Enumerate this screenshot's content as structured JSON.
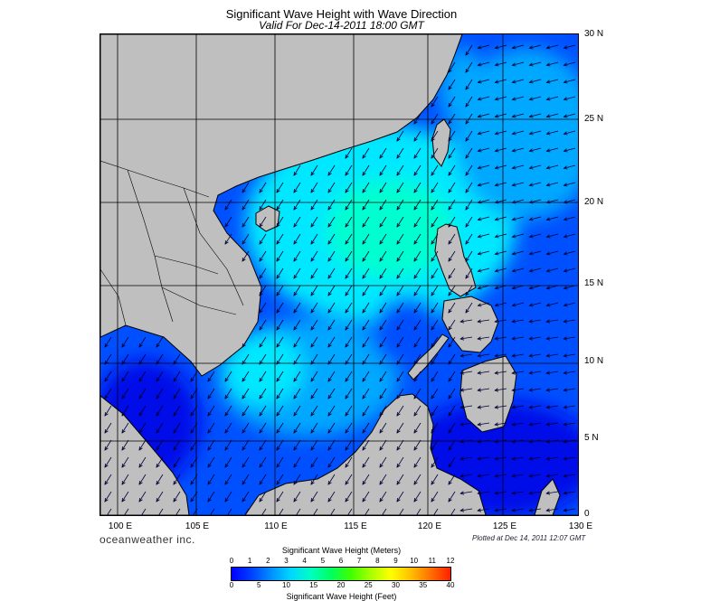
{
  "title": "Significant Wave Height with Wave Direction",
  "subtitle": "Valid For Dec-14-2011 18:00 GMT",
  "latitude_labels": [
    "30 N",
    "25 N",
    "20 N",
    "15 N",
    "10 N",
    "5 N",
    "0"
  ],
  "longitude_labels": [
    "100 E",
    "105 E",
    "110 E",
    "115 E",
    "120 E",
    "125 E",
    "130 E"
  ],
  "branding": "oceanweather inc.",
  "plotted_at": "Plotted at Dec 14, 2011 12:07 GMT",
  "colorbar": {
    "meters_title": "Significant Wave Height (Meters)",
    "feet_title": "Significant Wave Height (Feet)",
    "meters_ticks": [
      "0",
      "1",
      "2",
      "3",
      "4",
      "5",
      "6",
      "7",
      "8",
      "9",
      "10",
      "11",
      "12"
    ],
    "feet_ticks": [
      "0",
      "5",
      "10",
      "15",
      "20",
      "25",
      "30",
      "35",
      "40"
    ],
    "gradient_colors": [
      "#0000ff",
      "#0040ff",
      "#0090ff",
      "#00d8ff",
      "#00ffc0",
      "#00ff60",
      "#40ff00",
      "#a8ff00",
      "#ffff00",
      "#ffc000",
      "#ff7000",
      "#ff2000"
    ]
  },
  "colors": {
    "land": "#bfbfbf",
    "coast": "#000000",
    "grid": "#000000",
    "arrows": "#000033",
    "deep_blue": "#0008e8",
    "mid_blue": "#0050ff",
    "light_blue": "#00a8ff",
    "cyan": "#00e8ff",
    "aqua": "#00ffd0"
  }
}
